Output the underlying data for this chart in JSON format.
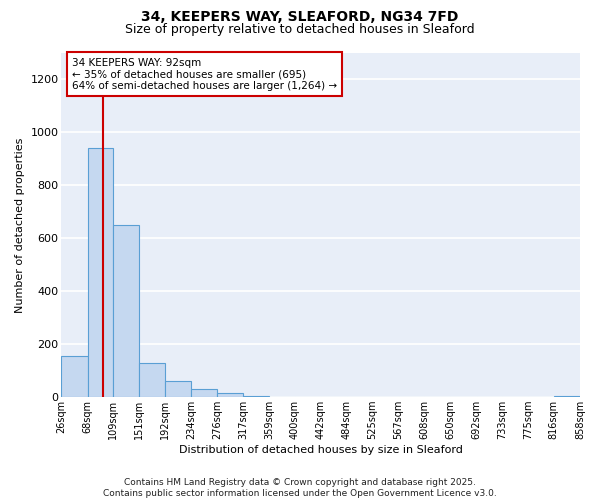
{
  "title": "34, KEEPERS WAY, SLEAFORD, NG34 7FD",
  "subtitle": "Size of property relative to detached houses in Sleaford",
  "xlabel": "Distribution of detached houses by size in Sleaford",
  "ylabel": "Number of detached properties",
  "bar_values": [
    155,
    940,
    650,
    130,
    60,
    30,
    15,
    5,
    0,
    0,
    0,
    0,
    0,
    0,
    0,
    0,
    0,
    0,
    0,
    5
  ],
  "bin_edges": [
    26,
    68,
    109,
    151,
    192,
    234,
    276,
    317,
    359,
    400,
    442,
    484,
    525,
    567,
    608,
    650,
    692,
    733,
    775,
    816,
    858
  ],
  "tick_labels": [
    "26sqm",
    "68sqm",
    "109sqm",
    "151sqm",
    "192sqm",
    "234sqm",
    "276sqm",
    "317sqm",
    "359sqm",
    "400sqm",
    "442sqm",
    "484sqm",
    "525sqm",
    "567sqm",
    "608sqm",
    "650sqm",
    "692sqm",
    "733sqm",
    "775sqm",
    "816sqm",
    "858sqm"
  ],
  "ylim": [
    0,
    1300
  ],
  "yticks": [
    0,
    200,
    400,
    600,
    800,
    1000,
    1200
  ],
  "bar_color": "#c5d8f0",
  "bar_edge_color": "#5a9fd4",
  "bg_color": "#e8eef8",
  "grid_color": "#ffffff",
  "vline_x": 92,
  "vline_color": "#cc0000",
  "annotation_text": "34 KEEPERS WAY: 92sqm\n← 35% of detached houses are smaller (695)\n64% of semi-detached houses are larger (1,264) →",
  "annotation_box_color": "#ffffff",
  "annotation_box_edge": "#cc0000",
  "footer": "Contains HM Land Registry data © Crown copyright and database right 2025.\nContains public sector information licensed under the Open Government Licence v3.0.",
  "title_fontsize": 10,
  "subtitle_fontsize": 9,
  "annot_fontsize": 7.5,
  "ylabel_fontsize": 8,
  "xlabel_fontsize": 8,
  "tick_fontsize": 7,
  "ytick_fontsize": 8,
  "footer_fontsize": 6.5
}
